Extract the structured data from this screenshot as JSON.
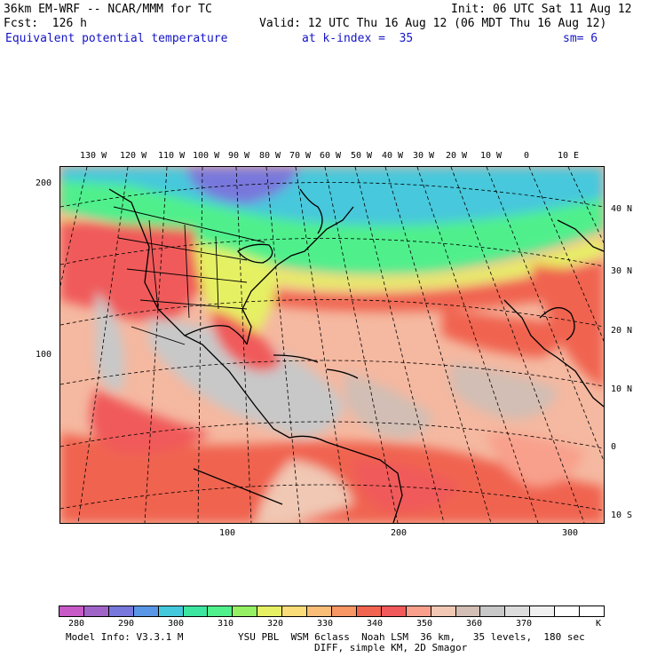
{
  "header": {
    "line1_left": "36km EM-WRF -- NCAR/MMM for TC",
    "line1_right": "Init: 06 UTC Sat 11 Aug 12",
    "line2_left": "Fcst:  126 h",
    "line2_right": "Valid: 12 UTC Thu 16 Aug 12 (06 MDT Thu 16 Aug 12)",
    "line3_field": "Equivalent potential temperature",
    "line3_level": "at k-index =  35",
    "line3_sm": "sm= 6"
  },
  "map": {
    "top_lon_labels": [
      "130 W",
      "120 W",
      "110 W",
      "100 W",
      "90 W",
      "80 W",
      "70 W",
      "60 W",
      "50 W",
      "40 W",
      "30 W",
      "20 W",
      "10 W",
      "0",
      "10 E"
    ],
    "right_lat_labels": [
      "40 N",
      "30 N",
      "20 N",
      "10 N",
      "0",
      "10 S"
    ],
    "left_grid_labels": [
      "200",
      "100"
    ],
    "bottom_grid_labels": [
      "100",
      "200",
      "300"
    ]
  },
  "colorbar": {
    "colors": [
      "#c85ac8",
      "#a064c8",
      "#7878dc",
      "#5a96e6",
      "#46c8dc",
      "#3ce6a0",
      "#50f08c",
      "#96f064",
      "#e6f064",
      "#fadc78",
      "#fabe78",
      "#f89664",
      "#f06450",
      "#f05a5a",
      "#f8a08c",
      "#f0c8b4",
      "#d2beb4",
      "#c8c8c8",
      "#dcdcdc",
      "#f0f0f0",
      "#ffffff",
      "#ffffff"
    ],
    "labels": [
      "280",
      "290",
      "300",
      "310",
      "320",
      "330",
      "340",
      "350",
      "360",
      "370"
    ],
    "unit": "K"
  },
  "footer": {
    "line1_left": "Model Info: V3.3.1 M",
    "line1_right": "YSU PBL  WSM 6class  Noah LSM  36 km,   35 levels,  180 sec",
    "line2": "DIFF, simple KM, 2D Smagor"
  }
}
